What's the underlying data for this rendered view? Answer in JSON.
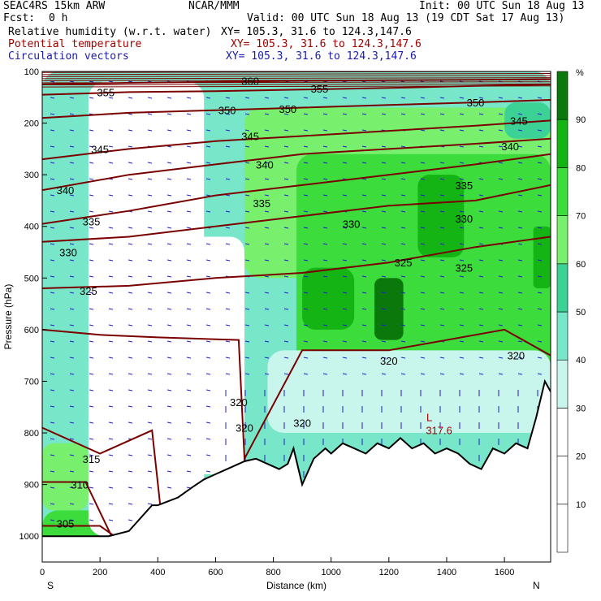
{
  "header": {
    "model": "SEAC4RS 15km ARW",
    "org": "NCAR/MMM",
    "init": "Init: 00 UTC Sun 18 Aug 13",
    "fcst_label": "Fcst:",
    "fcst_value": "0 h",
    "valid": "Valid: 00 UTC Sun 18 Aug 13 (19 CDT Sat 17 Aug 13)",
    "fields": [
      {
        "name": "Relative humidity (w.r.t. water)",
        "xy": "XY= 105.3, 31.6 to 124.3,147.6",
        "color": "#000000"
      },
      {
        "name": "Potential temperature",
        "xy": "XY= 105.3, 31.6 to 124.3,147.6",
        "color": "#a00000"
      },
      {
        "name": "Circulation vectors",
        "xy": "XY= 105.3, 31.6 to 124.3,147.6",
        "color": "#1a1ab0"
      }
    ]
  },
  "colors": {
    "theta": "#7a0000",
    "vectors": "#2020c0",
    "terrain": "#000000"
  },
  "chart_data": {
    "type": "heatmap",
    "xlabel": "Distance (km)",
    "ylabel": "Pressure (hPa)",
    "xlim": [
      0,
      1760
    ],
    "ylim": [
      1050,
      100
    ],
    "xticks": [
      0,
      200,
      400,
      600,
      800,
      1000,
      1200,
      1400,
      1600
    ],
    "yticks": [
      100,
      200,
      300,
      400,
      500,
      600,
      700,
      800,
      900,
      1000
    ],
    "end_labels": {
      "left": "S",
      "right": "N"
    },
    "colorbar": {
      "unit": "%",
      "levels": [
        10,
        20,
        30,
        40,
        50,
        60,
        70,
        80,
        90
      ],
      "colors": [
        "#ffffff",
        "#ffffff",
        "#ffffff",
        "#c8f5ec",
        "#78e6c8",
        "#3cd296",
        "#78f06e",
        "#3cdc3c",
        "#14b414",
        "#0a780a"
      ]
    },
    "rh_regions": [
      {
        "x": [
          0,
          1760
        ],
        "p": [
          100,
          1050
        ],
        "rh": 45
      },
      {
        "x": [
          0,
          220
        ],
        "p": [
          950,
          1050
        ],
        "rh": 75
      },
      {
        "x": [
          0,
          160
        ],
        "p": [
          820,
          950
        ],
        "rh": 65
      },
      {
        "x": [
          160,
          560
        ],
        "p": [
          120,
          1000
        ],
        "rh": 25
      },
      {
        "x": [
          280,
          360
        ],
        "p": [
          180,
          330
        ],
        "rh": 15
      },
      {
        "x": [
          500,
          700
        ],
        "p": [
          420,
          880
        ],
        "rh": 25
      },
      {
        "x": [
          750,
          880
        ],
        "p": [
          240,
          420
        ],
        "rh": 20
      },
      {
        "x": [
          700,
          1760
        ],
        "p": [
          170,
          500
        ],
        "rh": 65
      },
      {
        "x": [
          880,
          1760
        ],
        "p": [
          260,
          640
        ],
        "rh": 75
      },
      {
        "x": [
          880,
          1760
        ],
        "p": [
          430,
          720
        ],
        "rh": 70
      },
      {
        "x": [
          900,
          1080
        ],
        "p": [
          480,
          600
        ],
        "rh": 85
      },
      {
        "x": [
          1150,
          1250
        ],
        "p": [
          500,
          620
        ],
        "rh": 92
      },
      {
        "x": [
          1300,
          1460
        ],
        "p": [
          300,
          460
        ],
        "rh": 85
      },
      {
        "x": [
          1700,
          1760
        ],
        "p": [
          400,
          520
        ],
        "rh": 85
      },
      {
        "x": [
          780,
          1760
        ],
        "p": [
          640,
          800
        ],
        "rh": 35
      },
      {
        "x": [
          1600,
          1760
        ],
        "p": [
          160,
          230
        ],
        "rh": 55
      }
    ],
    "theta_contours": [
      {
        "value": 305,
        "x": [
          0,
          200,
          250
        ],
        "p": [
          980,
          980,
          1000
        ]
      },
      {
        "value": 310,
        "x": [
          0,
          150,
          240
        ],
        "p": [
          895,
          895,
          1000
        ]
      },
      {
        "value": 315,
        "x": [
          0,
          200,
          380,
          420
        ],
        "p": [
          790,
          840,
          795,
          1000
        ]
      },
      {
        "value": 320,
        "x": [
          0,
          200,
          400,
          680,
          700,
          900,
          1200,
          1600,
          1760
        ],
        "p": [
          600,
          610,
          615,
          620,
          850,
          640,
          640,
          600,
          650
        ]
      },
      {
        "value": 325,
        "x": [
          0,
          300,
          600,
          900,
          1200,
          1500,
          1760
        ],
        "p": [
          520,
          515,
          500,
          490,
          470,
          440,
          420
        ]
      },
      {
        "value": 330,
        "x": [
          0,
          300,
          600,
          900,
          1200,
          1500,
          1760
        ],
        "p": [
          430,
          420,
          400,
          380,
          360,
          350,
          320
        ]
      },
      {
        "value": 335,
        "x": [
          0,
          300,
          600,
          900,
          1200,
          1500,
          1760
        ],
        "p": [
          395,
          370,
          340,
          320,
          300,
          280,
          260
        ]
      },
      {
        "value": 340,
        "x": [
          0,
          300,
          600,
          900,
          1200,
          1500,
          1760
        ],
        "p": [
          330,
          300,
          280,
          260,
          250,
          240,
          230
        ]
      },
      {
        "value": 345,
        "x": [
          0,
          300,
          600,
          900,
          1200,
          1500,
          1760
        ],
        "p": [
          270,
          250,
          235,
          225,
          215,
          205,
          195
        ]
      },
      {
        "value": 350,
        "x": [
          0,
          300,
          600,
          900,
          1200,
          1500,
          1760
        ],
        "p": [
          190,
          180,
          175,
          170,
          165,
          160,
          155
        ]
      },
      {
        "value": 355,
        "x": [
          0,
          300,
          600,
          900,
          1200,
          1500,
          1760
        ],
        "p": [
          145,
          140,
          138,
          135,
          132,
          128,
          125
        ]
      },
      {
        "value": 360,
        "x": [
          0,
          300,
          600,
          900,
          1200,
          1500,
          1760
        ],
        "p": [
          125,
          122,
          120,
          118,
          117,
          116,
          115
        ]
      }
    ],
    "theta_labels": [
      {
        "text": "360",
        "x": 720,
        "p": 118
      },
      {
        "text": "355",
        "x": 220,
        "p": 140
      },
      {
        "text": "355",
        "x": 960,
        "p": 133
      },
      {
        "text": "350",
        "x": 640,
        "p": 175
      },
      {
        "text": "350",
        "x": 850,
        "p": 172
      },
      {
        "text": "350",
        "x": 1500,
        "p": 160
      },
      {
        "text": "345",
        "x": 200,
        "p": 250
      },
      {
        "text": "345",
        "x": 720,
        "p": 225
      },
      {
        "text": "345",
        "x": 1650,
        "p": 195
      },
      {
        "text": "340",
        "x": 80,
        "p": 330
      },
      {
        "text": "340",
        "x": 770,
        "p": 280
      },
      {
        "text": "340",
        "x": 1620,
        "p": 245
      },
      {
        "text": "335",
        "x": 170,
        "p": 390
      },
      {
        "text": "335",
        "x": 760,
        "p": 355
      },
      {
        "text": "335",
        "x": 1460,
        "p": 320
      },
      {
        "text": "330",
        "x": 90,
        "p": 450
      },
      {
        "text": "330",
        "x": 1070,
        "p": 395
      },
      {
        "text": "330",
        "x": 1460,
        "p": 385
      },
      {
        "text": "325",
        "x": 160,
        "p": 525
      },
      {
        "text": "325",
        "x": 1250,
        "p": 470
      },
      {
        "text": "325",
        "x": 1460,
        "p": 480
      },
      {
        "text": "320",
        "x": 680,
        "p": 740
      },
      {
        "text": "320",
        "x": 700,
        "p": 790
      },
      {
        "text": "320",
        "x": 900,
        "p": 780
      },
      {
        "text": "320",
        "x": 1200,
        "p": 660
      },
      {
        "text": "320",
        "x": 1640,
        "p": 650
      },
      {
        "text": "315",
        "x": 170,
        "p": 850
      },
      {
        "text": "310",
        "x": 130,
        "p": 900
      },
      {
        "text": "305",
        "x": 80,
        "p": 975
      }
    ],
    "low_marker": {
      "text": "L",
      "value_text": "317.6",
      "x": 1340,
      "p": 790
    },
    "terrain_surface": {
      "x": [
        0,
        230,
        300,
        380,
        400,
        470,
        520,
        560,
        600,
        640,
        680,
        700,
        740,
        780,
        820,
        850,
        870,
        900,
        940,
        980,
        1000,
        1040,
        1080,
        1120,
        1160,
        1200,
        1240,
        1280,
        1320,
        1360,
        1400,
        1440,
        1480,
        1520,
        1560,
        1600,
        1640,
        1680,
        1710,
        1740,
        1760
      ],
      "p": [
        1000,
        1000,
        990,
        940,
        940,
        925,
        905,
        890,
        880,
        870,
        860,
        855,
        850,
        860,
        870,
        860,
        830,
        900,
        850,
        830,
        840,
        820,
        830,
        840,
        820,
        830,
        810,
        830,
        820,
        840,
        830,
        840,
        860,
        870,
        830,
        840,
        820,
        830,
        770,
        700,
        720
      ]
    }
  }
}
